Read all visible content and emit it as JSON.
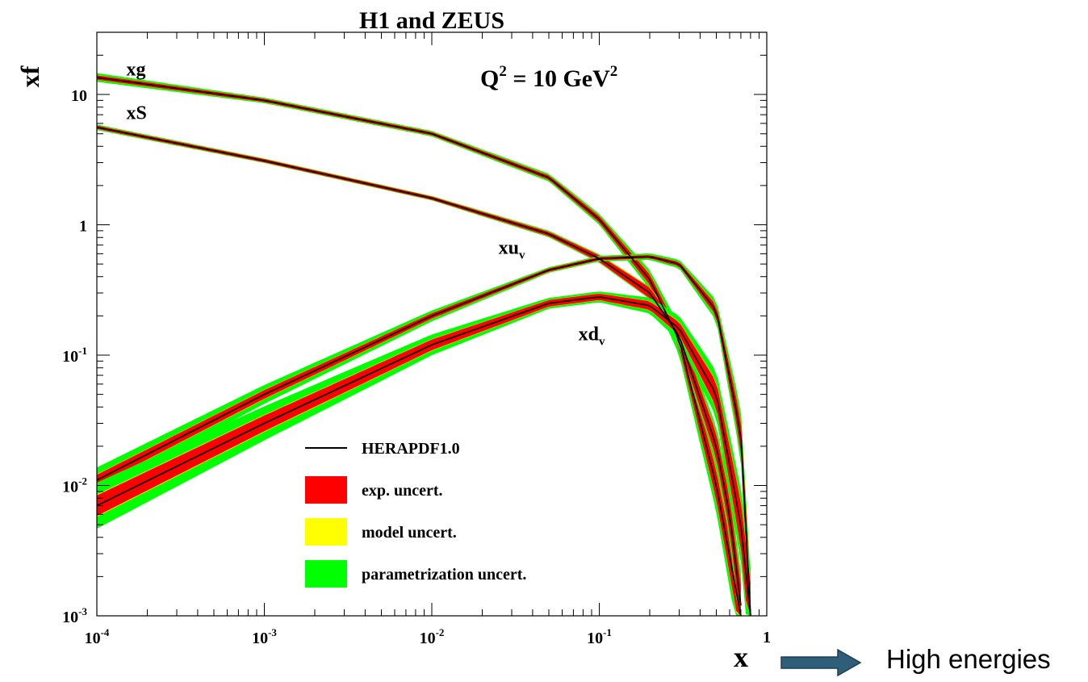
{
  "chart_data": {
    "type": "line",
    "title": "H1 and ZEUS",
    "annotation": "Q² = 10 GeV²",
    "annotation_parts": {
      "q": "Q",
      "q_sup": "2",
      "mid": " = 10 GeV",
      "unit_sup": "2"
    },
    "xlabel": "x",
    "ylabel": "xf",
    "xscale": "log",
    "yscale": "log",
    "xlim": [
      0.0001,
      1
    ],
    "ylim": [
      0.001,
      30
    ],
    "x_ticks": [
      {
        "value": 0.0001,
        "base": "10",
        "exp": "-4"
      },
      {
        "value": 0.001,
        "base": "10",
        "exp": "-3"
      },
      {
        "value": 0.01,
        "base": "10",
        "exp": "-2"
      },
      {
        "value": 0.1,
        "base": "10",
        "exp": "-1"
      },
      {
        "value": 1,
        "base": "1",
        "exp": ""
      }
    ],
    "y_ticks": [
      {
        "value": 0.001,
        "base": "10",
        "exp": "-3"
      },
      {
        "value": 0.01,
        "base": "10",
        "exp": "-2"
      },
      {
        "value": 0.1,
        "base": "10",
        "exp": "-1"
      },
      {
        "value": 1,
        "base": "1",
        "exp": ""
      },
      {
        "value": 10,
        "base": "10",
        "exp": ""
      }
    ],
    "grid": false,
    "legend_placement": "bottom-center",
    "legend": [
      {
        "label": "HERAPDF1.0",
        "kind": "line",
        "color": "#000000"
      },
      {
        "label": "exp. uncert.",
        "kind": "box",
        "color": "#ff0000"
      },
      {
        "label": "model uncert.",
        "kind": "box",
        "color": "#ffff00"
      },
      {
        "label": "parametrization uncert.",
        "kind": "box",
        "color": "#00ff00"
      }
    ],
    "colors": {
      "central": "#000000",
      "exp": "#ff0000",
      "model": "#ffff00",
      "param": "#00ff00"
    },
    "series": [
      {
        "name": "xg",
        "label_base": "xg",
        "label_sub": "",
        "label_at": [
          0.00015,
          14
        ],
        "x": [
          0.0001,
          0.001,
          0.01,
          0.05,
          0.1,
          0.2,
          0.3,
          0.5,
          0.7
        ],
        "y": [
          13.5,
          9.0,
          5.0,
          2.3,
          1.1,
          0.38,
          0.13,
          0.01,
          0.001
        ],
        "exp_rel": [
          0.04,
          0.03,
          0.03,
          0.04,
          0.06,
          0.1,
          0.15,
          0.3,
          0.45
        ],
        "param_rel": [
          0.08,
          0.05,
          0.05,
          0.07,
          0.1,
          0.18,
          0.3,
          0.6,
          0.9
        ]
      },
      {
        "name": "xS",
        "label_base": "xS",
        "label_sub": "",
        "label_at": [
          0.00015,
          6.5
        ],
        "x": [
          0.0001,
          0.001,
          0.01,
          0.05,
          0.1,
          0.2,
          0.3,
          0.5,
          0.6,
          0.7
        ],
        "y": [
          5.6,
          3.1,
          1.6,
          0.85,
          0.55,
          0.3,
          0.14,
          0.02,
          0.006,
          0.0012
        ],
        "exp_rel": [
          0.03,
          0.03,
          0.03,
          0.04,
          0.06,
          0.1,
          0.14,
          0.25,
          0.35,
          0.45
        ],
        "param_rel": [
          0.05,
          0.04,
          0.04,
          0.06,
          0.08,
          0.12,
          0.2,
          0.4,
          0.6,
          0.8
        ]
      },
      {
        "name": "xuv",
        "label_base": "xu",
        "label_sub": "v",
        "label_at": [
          0.025,
          0.6
        ],
        "x": [
          0.0001,
          0.001,
          0.01,
          0.05,
          0.1,
          0.2,
          0.3,
          0.5,
          0.7,
          0.8
        ],
        "y": [
          0.011,
          0.05,
          0.2,
          0.45,
          0.55,
          0.57,
          0.5,
          0.22,
          0.025,
          0.001
        ],
        "exp_rel": [
          0.1,
          0.08,
          0.05,
          0.03,
          0.03,
          0.03,
          0.04,
          0.1,
          0.3,
          0.6
        ],
        "param_rel": [
          0.25,
          0.18,
          0.1,
          0.05,
          0.05,
          0.06,
          0.08,
          0.2,
          0.55,
          1.0
        ]
      },
      {
        "name": "xdv",
        "label_base": "xd",
        "label_sub": "v",
        "label_at": [
          0.075,
          0.13
        ],
        "x": [
          0.0001,
          0.001,
          0.01,
          0.05,
          0.1,
          0.2,
          0.3,
          0.5,
          0.7,
          0.8
        ],
        "y": [
          0.007,
          0.03,
          0.12,
          0.25,
          0.28,
          0.24,
          0.16,
          0.05,
          0.005,
          0.001
        ],
        "exp_rel": [
          0.2,
          0.15,
          0.1,
          0.06,
          0.06,
          0.08,
          0.12,
          0.25,
          0.5,
          0.8
        ],
        "param_rel": [
          0.5,
          0.35,
          0.2,
          0.1,
          0.1,
          0.15,
          0.25,
          0.5,
          0.9,
          1.3
        ]
      }
    ]
  },
  "side_label": "High energies",
  "arrow_color": "#2e5e7a"
}
